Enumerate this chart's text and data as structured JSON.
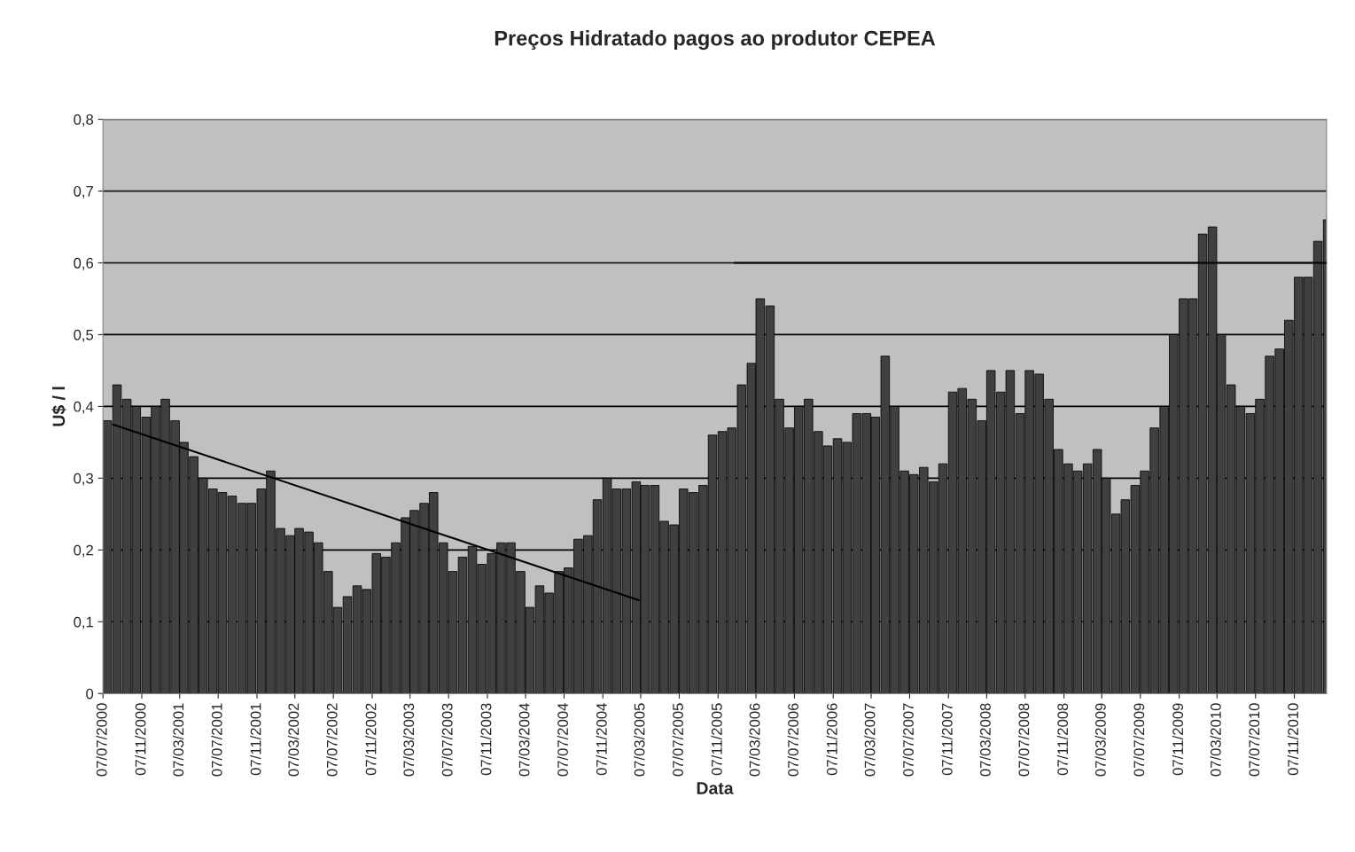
{
  "chart_data": {
    "type": "bar",
    "title": "Preços Hidratado pagos ao produtor CEPEA",
    "xlabel": "Data",
    "ylabel": "U$ / l",
    "x": [
      "2000-07-07",
      "2000-08-07",
      "2000-09-07",
      "2000-10-07",
      "2000-11-07",
      "2000-12-07",
      "2001-01-07",
      "2001-02-07",
      "2001-03-07",
      "2001-04-07",
      "2001-05-07",
      "2001-06-07",
      "2001-07-07",
      "2001-08-07",
      "2001-09-07",
      "2001-10-07",
      "2001-11-07",
      "2001-12-07",
      "2002-01-07",
      "2002-02-07",
      "2002-03-07",
      "2002-04-07",
      "2002-05-07",
      "2002-06-07",
      "2002-07-07",
      "2002-08-07",
      "2002-09-07",
      "2002-10-07",
      "2002-11-07",
      "2002-12-07",
      "2003-01-07",
      "2003-02-07",
      "2003-03-07",
      "2003-04-07",
      "2003-05-07",
      "2003-06-07",
      "2003-07-07",
      "2003-08-07",
      "2003-09-07",
      "2003-10-07",
      "2003-11-07",
      "2003-12-07",
      "2004-01-07",
      "2004-02-07",
      "2004-03-07",
      "2004-04-07",
      "2004-05-07",
      "2004-06-07",
      "2004-07-07",
      "2004-08-07",
      "2004-09-07",
      "2004-10-07",
      "2004-11-07",
      "2004-12-07",
      "2005-01-07",
      "2005-02-07",
      "2005-03-07",
      "2005-04-07",
      "2005-05-07",
      "2005-06-07",
      "2005-07-07",
      "2005-08-07",
      "2005-09-07",
      "2005-10-07",
      "2005-11-07",
      "2005-12-07",
      "2006-01-07",
      "2006-02-07",
      "2006-03-07",
      "2006-04-07",
      "2006-05-07",
      "2006-06-07",
      "2006-07-07",
      "2006-08-07",
      "2006-09-07",
      "2006-10-07",
      "2006-11-07",
      "2006-12-07",
      "2007-01-07",
      "2007-02-07",
      "2007-03-07",
      "2007-04-07",
      "2007-05-07",
      "2007-06-07",
      "2007-07-07",
      "2007-08-07",
      "2007-09-07",
      "2007-10-07",
      "2007-11-07",
      "2007-12-07",
      "2008-01-07",
      "2008-02-07",
      "2008-03-07",
      "2008-04-07",
      "2008-05-07",
      "2008-06-07",
      "2008-07-07",
      "2008-08-07",
      "2008-09-07",
      "2008-10-07",
      "2008-11-07",
      "2008-12-07",
      "2009-01-07",
      "2009-02-07",
      "2009-03-07",
      "2009-04-07",
      "2009-05-07",
      "2009-06-07",
      "2009-07-07",
      "2009-08-07",
      "2009-09-07",
      "2009-10-07",
      "2009-11-07",
      "2009-12-07",
      "2010-01-07",
      "2010-02-07",
      "2010-03-07",
      "2010-04-07",
      "2010-05-07",
      "2010-06-07",
      "2010-07-07",
      "2010-08-07",
      "2010-09-07",
      "2010-10-07",
      "2010-11-07",
      "2010-12-07",
      "2011-01-07",
      "2011-02-07"
    ],
    "series": [
      {
        "color": "#404040",
        "values": [
          0.38,
          0.43,
          0.41,
          0.4,
          0.385,
          0.4,
          0.41,
          0.38,
          0.35,
          0.33,
          0.3,
          0.285,
          0.28,
          0.275,
          0.265,
          0.265,
          0.285,
          0.31,
          0.23,
          0.22,
          0.23,
          0.225,
          0.21,
          0.17,
          0.12,
          0.135,
          0.15,
          0.145,
          0.195,
          0.19,
          0.21,
          0.245,
          0.255,
          0.265,
          0.28,
          0.21,
          0.17,
          0.19,
          0.205,
          0.18,
          0.195,
          0.21,
          0.21,
          0.17,
          0.12,
          0.15,
          0.14,
          0.17,
          0.175,
          0.215,
          0.22,
          0.27,
          0.3,
          0.285,
          0.285,
          0.295,
          0.29,
          0.29,
          0.24,
          0.235,
          0.285,
          0.28,
          0.29,
          0.36,
          0.365,
          0.37,
          0.43,
          0.46,
          0.55,
          0.54,
          0.41,
          0.37,
          0.4,
          0.41,
          0.365,
          0.345,
          0.355,
          0.35,
          0.39,
          0.39,
          0.385,
          0.47,
          0.4,
          0.31,
          0.305,
          0.315,
          0.295,
          0.32,
          0.42,
          0.425,
          0.41,
          0.38,
          0.45,
          0.42,
          0.45,
          0.39,
          0.45,
          0.445,
          0.41,
          0.34,
          0.32,
          0.31,
          0.32,
          0.34,
          0.3,
          0.25,
          0.27,
          0.29,
          0.31,
          0.37,
          0.4,
          0.5,
          0.55,
          0.55,
          0.64,
          0.65,
          0.5,
          0.43,
          0.4,
          0.39,
          0.41,
          0.47,
          0.48,
          0.52,
          0.58,
          0.58,
          0.63,
          0.66
        ]
      },
      {
        "type": "line",
        "color": "#000000",
        "x": [
          "2000-08-07",
          "2005-03-01"
        ],
        "values": [
          0.375,
          0.13
        ]
      },
      {
        "type": "line",
        "color": "#000000",
        "x": [
          "2005-12-28",
          "2011-02-15"
        ],
        "values": [
          0.6,
          0.6
        ]
      }
    ],
    "xlim": [
      "2000-07-07",
      "2011-02-17"
    ],
    "xticks": [
      {
        "value": "2000-07-07",
        "label": "07/07/2000"
      },
      {
        "value": "2000-11-07",
        "label": "07/11/2000"
      },
      {
        "value": "2001-03-07",
        "label": "07/03/2001"
      },
      {
        "value": "2001-07-07",
        "label": "07/07/2001"
      },
      {
        "value": "2001-11-07",
        "label": "07/11/2001"
      },
      {
        "value": "2002-03-07",
        "label": "07/03/2002"
      },
      {
        "value": "2002-07-07",
        "label": "07/07/2002"
      },
      {
        "value": "2002-11-07",
        "label": "07/11/2002"
      },
      {
        "value": "2003-03-07",
        "label": "07/03/2003"
      },
      {
        "value": "2003-07-07",
        "label": "07/07/2003"
      },
      {
        "value": "2003-11-07",
        "label": "07/11/2003"
      },
      {
        "value": "2004-03-07",
        "label": "07/03/2004"
      },
      {
        "value": "2004-07-07",
        "label": "07/07/2004"
      },
      {
        "value": "2004-11-07",
        "label": "07/11/2004"
      },
      {
        "value": "2005-03-07",
        "label": "07/03/2005"
      },
      {
        "value": "2005-07-07",
        "label": "07/07/2005"
      },
      {
        "value": "2005-11-07",
        "label": "07/11/2005"
      },
      {
        "value": "2006-03-07",
        "label": "07/03/2006"
      },
      {
        "value": "2006-07-07",
        "label": "07/07/2006"
      },
      {
        "value": "2006-11-07",
        "label": "07/11/2006"
      },
      {
        "value": "2007-03-07",
        "label": "07/03/2007"
      },
      {
        "value": "2007-07-07",
        "label": "07/07/2007"
      },
      {
        "value": "2007-11-07",
        "label": "07/11/2007"
      },
      {
        "value": "2008-03-07",
        "label": "07/03/2008"
      },
      {
        "value": "2008-07-07",
        "label": "07/07/2008"
      },
      {
        "value": "2008-11-07",
        "label": "07/11/2008"
      },
      {
        "value": "2009-03-07",
        "label": "07/03/2009"
      },
      {
        "value": "2009-07-07",
        "label": "07/07/2009"
      },
      {
        "value": "2009-11-07",
        "label": "07/11/2009"
      },
      {
        "value": "2010-03-07",
        "label": "07/03/2010"
      },
      {
        "value": "2010-07-07",
        "label": "07/07/2010"
      },
      {
        "value": "2010-11-07",
        "label": "07/11/2010"
      }
    ],
    "ylim": [
      0,
      0.8
    ],
    "yticks": [
      0,
      {
        "value": 0.1,
        "label": "0,1"
      },
      {
        "value": 0.2,
        "label": "0,2"
      },
      {
        "value": 0.3,
        "label": "0,3"
      },
      {
        "value": 0.4,
        "label": "0,4"
      },
      {
        "value": 0.5,
        "label": "0,5"
      },
      {
        "value": 0.6,
        "label": "0,6"
      },
      {
        "value": 0.7,
        "label": "0,7"
      },
      {
        "value": 0.8,
        "label": "0,8"
      }
    ],
    "grid": "y"
  }
}
